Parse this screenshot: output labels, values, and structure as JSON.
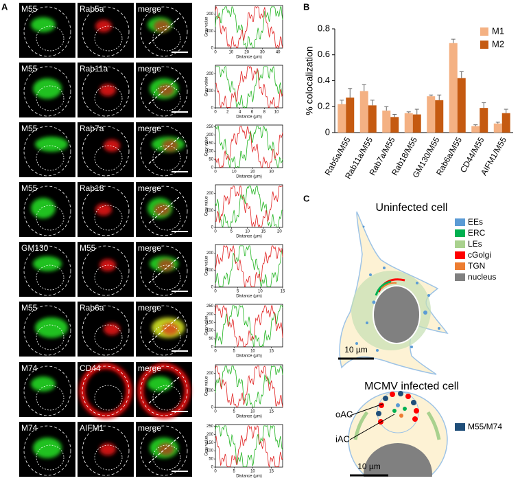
{
  "panels": {
    "a": "A",
    "b": "B",
    "c": "C"
  },
  "panel_a": {
    "rows": [
      {
        "labels": [
          "M55",
          "Rab5a",
          "merge"
        ],
        "plot": {
          "ylabel": "Gray value",
          "xlabel": "Distance (µm)",
          "xlim": [
            0,
            43
          ],
          "ylim": [
            0,
            250
          ],
          "xticks": [
            0,
            10,
            20,
            30,
            40
          ],
          "yticks": [
            0,
            100,
            200
          ]
        }
      },
      {
        "labels": [
          "M55",
          "Rab11a",
          "merge"
        ],
        "plot": {
          "ylabel": "Gray value",
          "xlabel": "Distance (µm)",
          "xlim": [
            0,
            11
          ],
          "ylim": [
            0,
            250
          ],
          "xticks": [
            0,
            2,
            4,
            6,
            8,
            10
          ],
          "yticks": [
            0,
            100,
            200
          ]
        }
      },
      {
        "labels": [
          "M55",
          "Rab7a",
          "merge"
        ],
        "plot": {
          "ylabel": "Gray value",
          "xlabel": "Distance (µm)",
          "xlim": [
            0,
            36
          ],
          "ylim": [
            0,
            260
          ],
          "xticks": [
            0,
            10,
            20,
            30
          ],
          "yticks": [
            0,
            50,
            100,
            150,
            200,
            250
          ]
        }
      },
      {
        "labels": [
          "M55",
          "Rab18",
          "merge"
        ],
        "plot": {
          "ylabel": "Gray value",
          "xlabel": "Distance (µm)",
          "xlim": [
            0,
            21
          ],
          "ylim": [
            0,
            250
          ],
          "xticks": [
            0,
            5,
            10,
            15,
            20
          ],
          "yticks": [
            0,
            100,
            200
          ]
        }
      },
      {
        "labels": [
          "GM130",
          "M55",
          "merge"
        ],
        "plot": {
          "ylabel": "Gray value",
          "xlabel": "Distance (µm)",
          "xlim": [
            0,
            15
          ],
          "ylim": [
            0,
            250
          ],
          "xticks": [
            0,
            5,
            10,
            15
          ],
          "yticks": [
            0,
            100,
            200
          ]
        }
      },
      {
        "labels": [
          "M55",
          "Rab6a",
          "merge"
        ],
        "plot": {
          "ylabel": "Gray value",
          "xlabel": "Distance (µm)",
          "xlim": [
            0,
            18
          ],
          "ylim": [
            0,
            260
          ],
          "xticks": [
            0,
            5,
            10,
            15
          ],
          "yticks": [
            0,
            50,
            100,
            150,
            200,
            250
          ]
        }
      },
      {
        "labels": [
          "M74",
          "CD44",
          "merge"
        ],
        "plot": {
          "ylabel": "Gray value",
          "xlabel": "Distance (µm)",
          "xlim": [
            0,
            18
          ],
          "ylim": [
            0,
            250
          ],
          "xticks": [
            0,
            5,
            10,
            15
          ],
          "yticks": [
            0,
            100,
            200
          ]
        }
      },
      {
        "labels": [
          "M74",
          "AIFM1",
          "merge"
        ],
        "plot": {
          "ylabel": "Gray value",
          "xlabel": "Distance (µm)",
          "xlim": [
            0,
            18
          ],
          "ylim": [
            0,
            260
          ],
          "xticks": [
            0,
            5,
            10,
            15
          ],
          "yticks": [
            0,
            50,
            100,
            150,
            200,
            250
          ]
        }
      }
    ]
  },
  "chart_data": {
    "type": "bar",
    "ylabel": "% colocalization",
    "categories": [
      "Rab5a/M55",
      "Rab11a/M55",
      "Rab7a/M55",
      "Rab18/M55",
      "GM130/M55",
      "Rab6a/M55",
      "CD44/M55",
      "AIFM1/M55"
    ],
    "series": [
      {
        "name": "M1",
        "color": "#f4b183",
        "values": [
          0.22,
          0.32,
          0.17,
          0.15,
          0.28,
          0.69,
          0.05,
          0.07
        ],
        "errors": [
          0.03,
          0.05,
          0.03,
          0.01,
          0.01,
          0.03,
          0.01,
          0.01
        ]
      },
      {
        "name": "M2",
        "color": "#c55a11",
        "values": [
          0.27,
          0.21,
          0.12,
          0.14,
          0.25,
          0.42,
          0.19,
          0.15
        ],
        "errors": [
          0.07,
          0.04,
          0.02,
          0.04,
          0.04,
          0.05,
          0.04,
          0.03
        ]
      }
    ],
    "ylim": [
      0,
      0.8
    ],
    "yticks": [
      0,
      0.2,
      0.4,
      0.6,
      0.8
    ],
    "legend": "upper right"
  },
  "panel_c": {
    "uninfected": {
      "title": "Uninfected cell",
      "scale": "10 µm"
    },
    "legend": [
      {
        "label": "EEs",
        "color": "#5b9bd5"
      },
      {
        "label": "ERC",
        "color": "#00b050"
      },
      {
        "label": "LEs",
        "color": "#a9d18e"
      },
      {
        "label": "cGolgi",
        "color": "#ff0000"
      },
      {
        "label": "TGN",
        "color": "#ed7d31"
      },
      {
        "label": "nucleus",
        "color": "#808080"
      }
    ],
    "infected": {
      "title": "MCMV infected cell",
      "scale": "10 µm",
      "labels": [
        "oAC",
        "iAC"
      ],
      "legend": {
        "label": "M55/M74",
        "color": "#1f4e79"
      }
    }
  }
}
